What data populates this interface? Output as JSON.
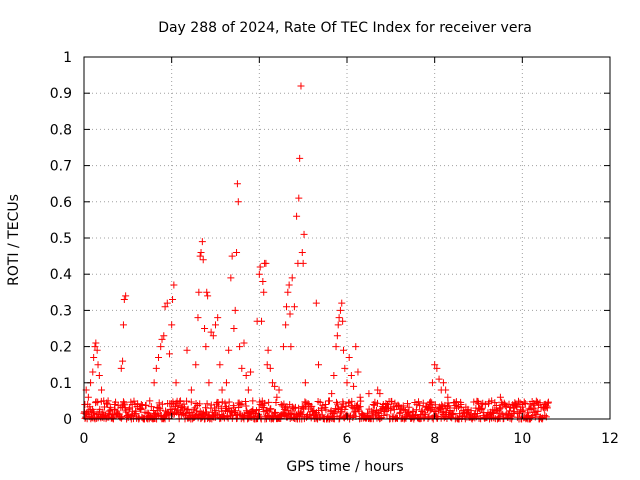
{
  "chart_data": {
    "type": "scatter",
    "title": "Day 288 of 2024, Rate Of TEC Index for receiver vera",
    "xlabel": "GPS time / hours",
    "ylabel": "ROTI / TECUs",
    "xlim": [
      0,
      12
    ],
    "ylim": [
      0,
      1
    ],
    "x_ticks": [
      "0",
      "2",
      "4",
      "6",
      "8",
      "10",
      "12"
    ],
    "y_ticks": [
      "0",
      "0.1",
      "0.2",
      "0.3",
      "0.4",
      "0.5",
      "0.6",
      "0.7",
      "0.8",
      "0.9",
      "1"
    ],
    "grid": true,
    "marker": "+",
    "series_color": "#ff0000",
    "baseline": {
      "x_range": [
        0,
        10.6
      ],
      "y_range": [
        0.0,
        0.05
      ]
    },
    "points": [
      [
        0.02,
        0.04
      ],
      [
        0.05,
        0.08
      ],
      [
        0.1,
        0.06
      ],
      [
        0.15,
        0.1
      ],
      [
        0.2,
        0.13
      ],
      [
        0.22,
        0.17
      ],
      [
        0.25,
        0.2
      ],
      [
        0.27,
        0.21
      ],
      [
        0.3,
        0.19
      ],
      [
        0.32,
        0.15
      ],
      [
        0.35,
        0.12
      ],
      [
        0.4,
        0.08
      ],
      [
        0.45,
        0.05
      ],
      [
        0.55,
        0.05
      ],
      [
        0.7,
        0.04
      ],
      [
        0.85,
        0.14
      ],
      [
        0.88,
        0.16
      ],
      [
        0.9,
        0.26
      ],
      [
        0.92,
        0.33
      ],
      [
        0.95,
        0.34
      ],
      [
        1.1,
        0.04
      ],
      [
        1.3,
        0.03
      ],
      [
        1.5,
        0.05
      ],
      [
        1.6,
        0.1
      ],
      [
        1.65,
        0.14
      ],
      [
        1.7,
        0.17
      ],
      [
        1.75,
        0.2
      ],
      [
        1.78,
        0.22
      ],
      [
        1.82,
        0.23
      ],
      [
        1.85,
        0.31
      ],
      [
        1.9,
        0.32
      ],
      [
        1.95,
        0.18
      ],
      [
        2.0,
        0.26
      ],
      [
        2.02,
        0.33
      ],
      [
        2.05,
        0.37
      ],
      [
        2.1,
        0.1
      ],
      [
        2.2,
        0.05
      ],
      [
        2.35,
        0.19
      ],
      [
        2.45,
        0.08
      ],
      [
        2.55,
        0.15
      ],
      [
        2.6,
        0.28
      ],
      [
        2.62,
        0.35
      ],
      [
        2.65,
        0.45
      ],
      [
        2.67,
        0.46
      ],
      [
        2.7,
        0.49
      ],
      [
        2.72,
        0.44
      ],
      [
        2.75,
        0.25
      ],
      [
        2.78,
        0.2
      ],
      [
        2.8,
        0.35
      ],
      [
        2.82,
        0.34
      ],
      [
        2.85,
        0.1
      ],
      [
        2.9,
        0.24
      ],
      [
        2.95,
        0.23
      ],
      [
        3.0,
        0.26
      ],
      [
        3.05,
        0.28
      ],
      [
        3.1,
        0.15
      ],
      [
        3.15,
        0.08
      ],
      [
        3.25,
        0.1
      ],
      [
        3.3,
        0.19
      ],
      [
        3.35,
        0.39
      ],
      [
        3.38,
        0.45
      ],
      [
        3.42,
        0.25
      ],
      [
        3.45,
        0.3
      ],
      [
        3.48,
        0.46
      ],
      [
        3.5,
        0.65
      ],
      [
        3.52,
        0.6
      ],
      [
        3.55,
        0.2
      ],
      [
        3.6,
        0.14
      ],
      [
        3.65,
        0.21
      ],
      [
        3.7,
        0.12
      ],
      [
        3.75,
        0.08
      ],
      [
        3.8,
        0.13
      ],
      [
        3.85,
        0.05
      ],
      [
        3.95,
        0.27
      ],
      [
        4.0,
        0.4
      ],
      [
        4.02,
        0.42
      ],
      [
        4.05,
        0.27
      ],
      [
        4.08,
        0.38
      ],
      [
        4.1,
        0.35
      ],
      [
        4.12,
        0.43
      ],
      [
        4.15,
        0.43
      ],
      [
        4.18,
        0.15
      ],
      [
        4.2,
        0.19
      ],
      [
        4.25,
        0.14
      ],
      [
        4.3,
        0.1
      ],
      [
        4.35,
        0.09
      ],
      [
        4.4,
        0.06
      ],
      [
        4.45,
        0.08
      ],
      [
        4.5,
        0.04
      ],
      [
        4.55,
        0.2
      ],
      [
        4.6,
        0.26
      ],
      [
        4.62,
        0.31
      ],
      [
        4.65,
        0.35
      ],
      [
        4.68,
        0.37
      ],
      [
        4.7,
        0.29
      ],
      [
        4.72,
        0.2
      ],
      [
        4.75,
        0.39
      ],
      [
        4.8,
        0.31
      ],
      [
        4.85,
        0.56
      ],
      [
        4.88,
        0.43
      ],
      [
        4.9,
        0.61
      ],
      [
        4.92,
        0.72
      ],
      [
        4.95,
        0.92
      ],
      [
        4.98,
        0.46
      ],
      [
        5.0,
        0.43
      ],
      [
        5.02,
        0.51
      ],
      [
        5.05,
        0.1
      ],
      [
        5.3,
        0.32
      ],
      [
        5.35,
        0.15
      ],
      [
        5.6,
        0.05
      ],
      [
        5.65,
        0.07
      ],
      [
        5.7,
        0.12
      ],
      [
        5.75,
        0.2
      ],
      [
        5.78,
        0.23
      ],
      [
        5.8,
        0.26
      ],
      [
        5.82,
        0.28
      ],
      [
        5.85,
        0.3
      ],
      [
        5.88,
        0.32
      ],
      [
        5.9,
        0.27
      ],
      [
        5.92,
        0.19
      ],
      [
        5.95,
        0.14
      ],
      [
        6.0,
        0.1
      ],
      [
        6.05,
        0.17
      ],
      [
        6.1,
        0.12
      ],
      [
        6.15,
        0.09
      ],
      [
        6.2,
        0.2
      ],
      [
        6.25,
        0.13
      ],
      [
        6.3,
        0.06
      ],
      [
        6.5,
        0.07
      ],
      [
        6.6,
        0.04
      ],
      [
        6.7,
        0.08
      ],
      [
        6.75,
        0.07
      ],
      [
        7.0,
        0.03
      ],
      [
        7.5,
        0.02
      ],
      [
        7.9,
        0.04
      ],
      [
        7.95,
        0.1
      ],
      [
        8.0,
        0.15
      ],
      [
        8.05,
        0.14
      ],
      [
        8.1,
        0.11
      ],
      [
        8.15,
        0.08
      ],
      [
        8.2,
        0.1
      ],
      [
        8.25,
        0.08
      ],
      [
        8.3,
        0.06
      ],
      [
        8.5,
        0.03
      ],
      [
        8.6,
        0.04
      ],
      [
        9.0,
        0.03
      ],
      [
        9.3,
        0.05
      ],
      [
        9.5,
        0.06
      ],
      [
        9.8,
        0.03
      ],
      [
        10.0,
        0.04
      ],
      [
        10.2,
        0.03
      ],
      [
        10.5,
        0.04
      ]
    ]
  }
}
